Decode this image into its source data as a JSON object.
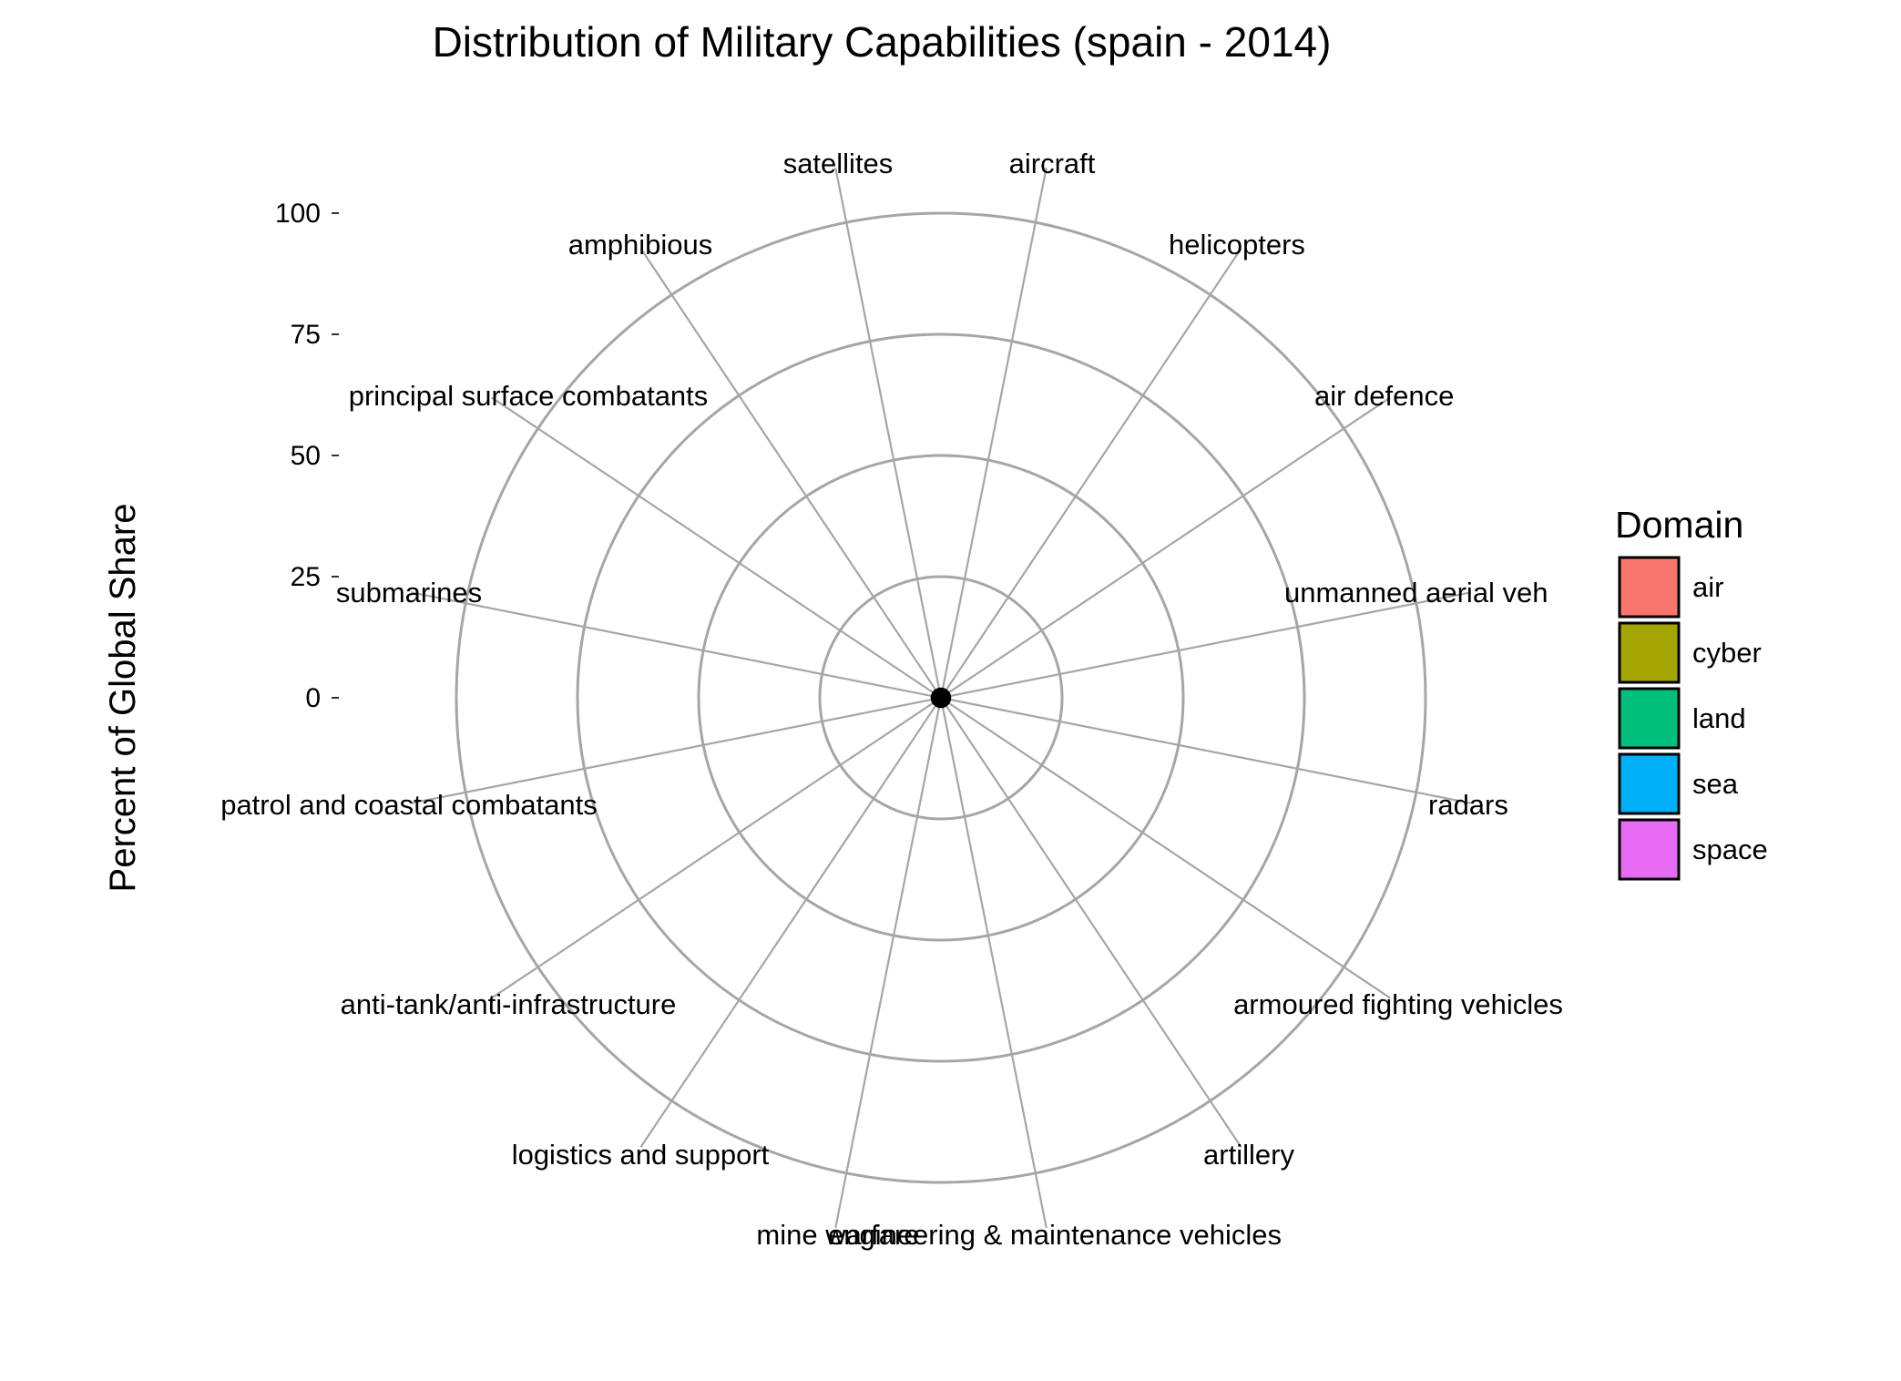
{
  "chart_data": {
    "type": "radar",
    "title": "Distribution of Military Capabilities (spain - 2014)",
    "ylabel": "Percent of Global Share",
    "ylim": [
      0,
      100
    ],
    "yticks": [
      0,
      25,
      50,
      75,
      100
    ],
    "categories": [
      "aircraft",
      "helicopters",
      "air defence",
      "unmanned aerial veh",
      "radars",
      "armoured fighting vehicles",
      "artillery",
      "engineering & maintenance vehicles",
      "mine warfare",
      "logistics and support",
      "anti-tank/anti-infrastructure",
      "patrol and coastal combatants",
      "submarines",
      "principal surface combatants",
      "amphibious",
      "satellites"
    ],
    "values": [
      1,
      1,
      1,
      1,
      1,
      1,
      1,
      1,
      1,
      1,
      1,
      1,
      1,
      1,
      1,
      1
    ],
    "legend": {
      "title": "Domain",
      "placement": "right",
      "items": [
        {
          "label": "air",
          "color": "#f8766d"
        },
        {
          "label": "cyber",
          "color": "#a3a500"
        },
        {
          "label": "land",
          "color": "#00bf7d"
        },
        {
          "label": "sea",
          "color": "#00b0f6"
        },
        {
          "label": "space",
          "color": "#e76bf3"
        }
      ]
    },
    "grid": true
  }
}
